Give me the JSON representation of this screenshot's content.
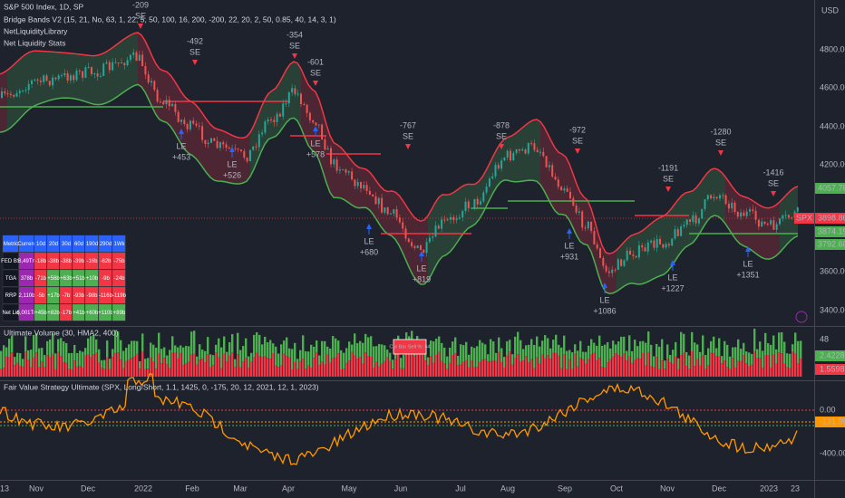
{
  "header": {
    "symbol": "S&P 500 Index, 1D, SP",
    "indicators": [
      "Bridge Bands V2 (15, 21, No, 63, 1, 22, 5, 50, 100, 16, 200, -200, 22, 20, 2, 50, 0.85, 40, 14, 3, 1)",
      "NetLiquidityLibrary",
      "Net Liquidity Stats"
    ],
    "currency": "USD"
  },
  "price_axis": {
    "labels": [
      "4800.00",
      "4600.00",
      "4400.00",
      "4200.00",
      "3600.00",
      "3400.00"
    ],
    "badges": [
      {
        "text": "4057.76"
      },
      {
        "symbol": "SPX",
        "text": "3898.86"
      },
      {
        "text": "3874.19"
      },
      {
        "text": "3792.60"
      }
    ]
  },
  "trades": {
    "short": [
      {
        "pnl": "-209",
        "label": "SE"
      },
      {
        "pnl": "-492",
        "label": "SE"
      },
      {
        "pnl": "-354",
        "label": "SE"
      },
      {
        "pnl": "-601",
        "label": "SE"
      },
      {
        "pnl": "-767",
        "label": "SE"
      },
      {
        "pnl": "-878",
        "label": "SE"
      },
      {
        "pnl": "-972",
        "label": "SE"
      },
      {
        "pnl": "-1191",
        "label": "SE"
      },
      {
        "pnl": "-1280",
        "label": "SE"
      },
      {
        "pnl": "-1416",
        "label": "SE"
      }
    ],
    "long": [
      {
        "label": "LE",
        "pnl": "+453"
      },
      {
        "label": "LE",
        "pnl": "+526"
      },
      {
        "label": "LE",
        "pnl": "+578"
      },
      {
        "label": "LE",
        "pnl": "+680"
      },
      {
        "label": "LE",
        "pnl": "+819"
      },
      {
        "label": "LE",
        "pnl": "+931"
      },
      {
        "label": "LE",
        "pnl": "+1086"
      },
      {
        "label": "LE",
        "pnl": "+1227"
      },
      {
        "label": "LE",
        "pnl": "+1351"
      }
    ]
  },
  "table": {
    "header": [
      "Metric",
      "Current",
      "10d",
      "20d",
      "30d",
      "60d",
      "190d",
      "290d",
      "1Wk"
    ],
    "rows": [
      [
        "FED BS",
        "8,49Tn",
        "-18b",
        "-38b",
        "-38b",
        "-39b",
        "-16b",
        "-62b",
        "-75b"
      ],
      [
        "TGA",
        "378b",
        "-71b",
        "+56b",
        "+63b",
        "+51b",
        "+10b",
        "-9b",
        "-24b"
      ],
      [
        "RRP",
        "2,110b",
        "-5b",
        "+17b",
        "-7b",
        "-93b",
        "-98b",
        "-116b",
        "-119b"
      ],
      [
        "Net Liq",
        "6,001Tn",
        "+45b",
        "+82b",
        "-17b",
        "+41b",
        "+60b",
        "+110b",
        "+89b"
      ]
    ]
  },
  "volume_pane": {
    "title": "Ultimate Volume (30, HMA2, 400)",
    "box": "Cur Bar Sell %: 64",
    "labels": [
      "48",
      "2.4228",
      "1.5598"
    ]
  },
  "oscillator_pane": {
    "title": "Fair Value Strategy Ultimate (SPX, Long/Short, 1.1, 1425, 0, -175, 20, 12, 2021, 12, 1, 2023)",
    "labels": [
      "0.00",
      "-131.95",
      "-400.00"
    ]
  },
  "time_axis": [
    "13",
    "Nov",
    "Dec",
    "2022",
    "Feb",
    "Mar",
    "Apr",
    "May",
    "Jun",
    "Jul",
    "Aug",
    "Sep",
    "Oct",
    "Nov",
    "Dec",
    "2023",
    "23"
  ]
}
